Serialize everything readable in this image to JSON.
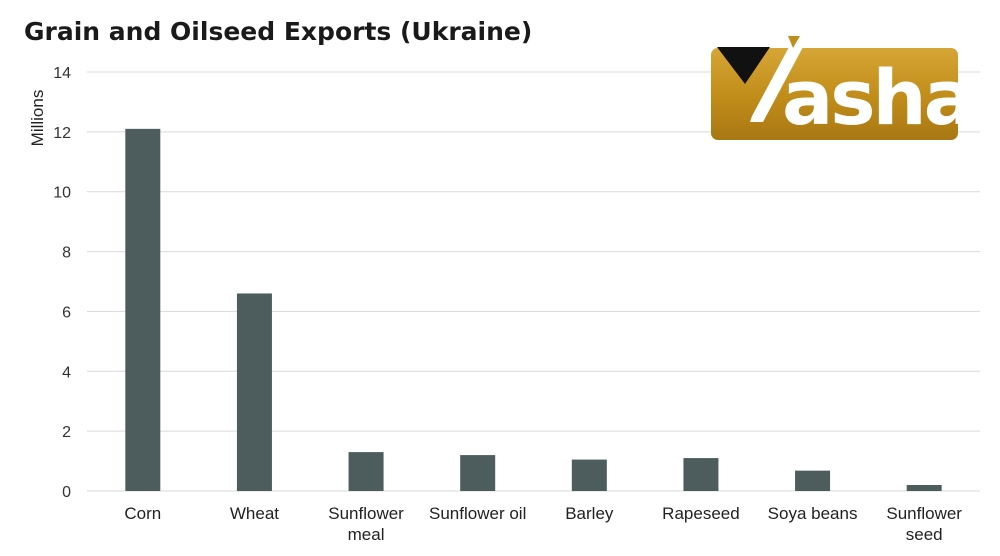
{
  "chart_data": {
    "type": "bar",
    "title": "Grain and Oilseed Exports (Ukraine)",
    "ylabel": "Millions",
    "xlabel": "",
    "ylim": [
      0,
      14
    ],
    "yticks": [
      0,
      2,
      4,
      6,
      8,
      10,
      12,
      14
    ],
    "grid": true,
    "categories": [
      [
        "Corn"
      ],
      [
        "Wheat"
      ],
      [
        "Sunflower",
        "meal"
      ],
      [
        "Sunflower oil"
      ],
      [
        "Barley"
      ],
      [
        "Rapeseed"
      ],
      [
        "Soya beans"
      ],
      [
        "Sunflower",
        "seed"
      ]
    ],
    "values": [
      12.1,
      6.6,
      1.3,
      1.2,
      1.05,
      1.1,
      0.68,
      0.2
    ],
    "bar_color": "#4d5d5e"
  },
  "logo": {
    "text": "ashar",
    "background_color": "#c28e1b",
    "mark_color": "#111111"
  }
}
